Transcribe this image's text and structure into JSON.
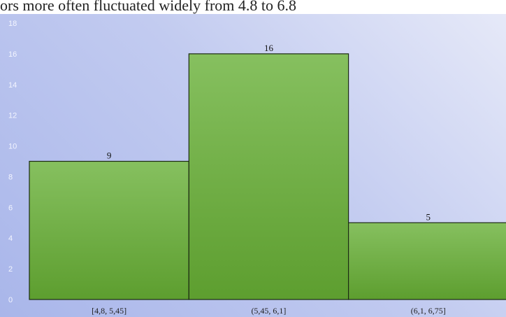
{
  "caption": "ors more often fluctuated widely from 4.8 to 6.8",
  "colors": {
    "bar_top": "#86c05f",
    "bar_bottom": "#5d9e2f",
    "bar_stroke": "#1b2a12"
  },
  "chart_data": {
    "type": "bar",
    "categories": [
      "[4,8, 5,45]",
      "(5,45, 6,1]",
      "(6,1, 6,75]"
    ],
    "values": [
      9,
      16,
      5
    ],
    "data_labels": [
      "9",
      "16",
      "5"
    ],
    "y_ticks": [
      "0",
      "2",
      "4",
      "6",
      "8",
      "10",
      "12",
      "14",
      "16",
      "18"
    ],
    "ylim": [
      0,
      18
    ],
    "grid": false,
    "legend": "none",
    "title": "",
    "xlabel": "",
    "ylabel": ""
  }
}
